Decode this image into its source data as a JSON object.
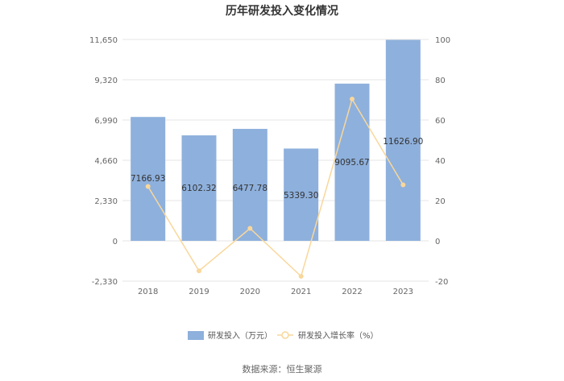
{
  "chart_data": {
    "type": "bar",
    "title": "历年研发投入变化情况",
    "categories": [
      "2018",
      "2019",
      "2020",
      "2021",
      "2022",
      "2023"
    ],
    "series": [
      {
        "name": "研发投入（万元）",
        "type": "bar",
        "axis": "left",
        "values": [
          7166.93,
          6102.32,
          6477.78,
          5339.3,
          9095.67,
          11626.9
        ],
        "labels": [
          "7166.93",
          "6102.32",
          "6477.78",
          "5339.30",
          "9095.67",
          "11626.90"
        ]
      },
      {
        "name": "研发投入增长率（%）",
        "type": "line",
        "axis": "right",
        "values": [
          27.0,
          -14.9,
          6.2,
          -17.6,
          70.4,
          27.8
        ]
      }
    ],
    "y_left": {
      "ticks": [
        "11,650",
        "9,320",
        "6,990",
        "4,660",
        "2,330",
        "0",
        "-2,330"
      ],
      "min": -2330,
      "max": 11650
    },
    "y_right": {
      "ticks": [
        "100",
        "80",
        "60",
        "40",
        "20",
        "0",
        "-20"
      ],
      "min": -20,
      "max": 100
    },
    "grid": true,
    "legend_position": "bottom",
    "colors": {
      "bar": "#8eb0dc",
      "line": "#f9d79b",
      "grid": "#e6e6e6"
    }
  },
  "source": "数据来源：恒生聚源"
}
